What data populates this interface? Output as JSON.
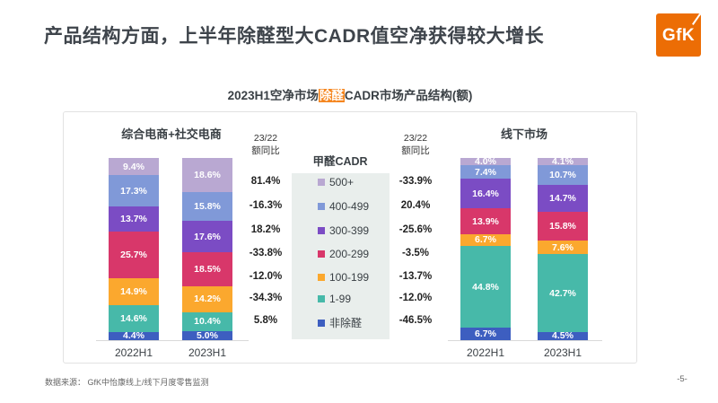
{
  "page": {
    "title": "产品结构方面，上半年除醛型大CADR值空净获得较大增长",
    "logo_text": "GfK",
    "source_note": "数据来源：  GfK中怡康线上/线下月度零售监测",
    "page_number": "-5-"
  },
  "chart_title": {
    "prefix": "2023H1空净市场",
    "highlight": "除醛",
    "suffix": "CADR市场产品结构(额)"
  },
  "colors": {
    "accent_orange": "#f5861f",
    "logo_orange": "#ec6d05",
    "title_gray": "#3e444b",
    "legend_box_bg": "#e9eeec"
  },
  "chart_data": {
    "type": "bar",
    "stacked": true,
    "value_unit": "%",
    "title": "2023H1空净市场除醛CADR市场产品结构(额)",
    "legend": {
      "title": "甲醛CADR",
      "position": "center",
      "items": [
        "500+",
        "400-499",
        "300-399",
        "200-299",
        "100-199",
        "1-99",
        "非除醛"
      ],
      "colors": [
        "#b9a8d2",
        "#8099d8",
        "#7b4cc4",
        "#d8376a",
        "#fba82e",
        "#47b9a9",
        "#3d5ec0"
      ]
    },
    "yoy_header": [
      "23/22",
      "额同比"
    ],
    "groups": [
      {
        "name": "综合电商+社交电商",
        "categories": [
          "2022H1",
          "2023H1"
        ],
        "bars": [
          {
            "label": "2022H1",
            "values": [
              9.4,
              17.3,
              13.7,
              25.7,
              14.9,
              14.6,
              4.4
            ]
          },
          {
            "label": "2023H1",
            "values": [
              18.6,
              15.8,
              17.6,
              18.5,
              14.2,
              10.4,
              5.0
            ]
          }
        ],
        "yoy": [
          "81.4%",
          "-16.3%",
          "18.2%",
          "-33.8%",
          "-12.0%",
          "-34.3%",
          "5.8%"
        ]
      },
      {
        "name": "线下市场",
        "categories": [
          "2022H1",
          "2023H1"
        ],
        "bars": [
          {
            "label": "2022H1",
            "values": [
              4.0,
              7.4,
              16.4,
              13.9,
              6.7,
              44.8,
              6.7
            ]
          },
          {
            "label": "2023H1",
            "values": [
              4.1,
              10.7,
              14.7,
              15.8,
              7.6,
              42.7,
              4.5
            ]
          }
        ],
        "yoy": [
          "-33.9%",
          "20.4%",
          "-25.6%",
          "-3.5%",
          "-13.7%",
          "-12.0%",
          "-46.5%"
        ]
      }
    ],
    "ylim": [
      0,
      100
    ],
    "grid": false
  }
}
